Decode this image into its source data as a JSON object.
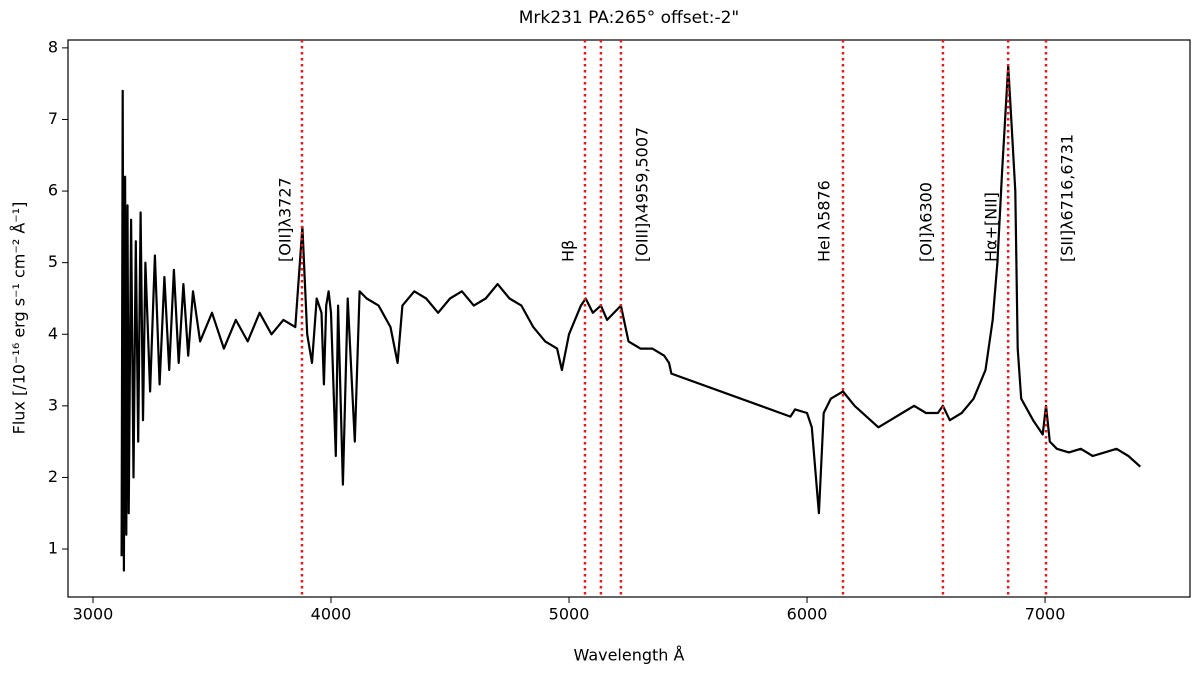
{
  "chart_data": {
    "type": "line",
    "title": "Mrk231 PA:265° offset:-2\"",
    "x_label": "Wavelength Å",
    "y_label": "Flux  [/10⁻¹⁶ erg s⁻¹ cm⁻² Å⁻¹]",
    "xlim": [
      2895,
      7609
    ],
    "ylim": [
      0.33,
      8.11
    ],
    "xticks": [
      3000,
      4000,
      5000,
      6000,
      7000
    ],
    "yticks": [
      1,
      2,
      3,
      4,
      5,
      6,
      7,
      8
    ],
    "grid": false,
    "series": [
      {
        "color": "#000000",
        "x": [
          3120,
          3125,
          3130,
          3135,
          3140,
          3145,
          3150,
          3160,
          3170,
          3180,
          3190,
          3200,
          3210,
          3220,
          3240,
          3260,
          3280,
          3300,
          3320,
          3340,
          3360,
          3380,
          3400,
          3420,
          3450,
          3500,
          3550,
          3600,
          3650,
          3700,
          3750,
          3800,
          3850,
          3880,
          3900,
          3920,
          3940,
          3960,
          3970,
          3980,
          3990,
          4000,
          4020,
          4030,
          4050,
          4070,
          4100,
          4120,
          4150,
          4200,
          4250,
          4280,
          4300,
          4350,
          4400,
          4450,
          4500,
          4550,
          4600,
          4650,
          4700,
          4750,
          4800,
          4850,
          4900,
          4950,
          4970,
          5000,
          5050,
          5070,
          5100,
          5134,
          5160,
          5218,
          5250,
          5300,
          5350,
          5400,
          5420,
          5430,
          5930,
          5950,
          6000,
          6020,
          6050,
          6070,
          6100,
          6151,
          6200,
          6250,
          6300,
          6350,
          6400,
          6450,
          6500,
          6550,
          6571,
          6600,
          6650,
          6700,
          6750,
          6780,
          6800,
          6820,
          6845,
          6860,
          6875,
          6885,
          6900,
          6950,
          6990,
          7004,
          7020,
          7050,
          7100,
          7150,
          7200,
          7250,
          7300,
          7350,
          7400
        ],
        "values": [
          0.9,
          7.4,
          0.7,
          6.2,
          1.2,
          5.8,
          1.5,
          5.6,
          2.0,
          5.3,
          2.5,
          5.7,
          2.8,
          5.0,
          3.2,
          5.1,
          3.3,
          4.8,
          3.5,
          4.9,
          3.6,
          4.7,
          3.7,
          4.6,
          3.9,
          4.3,
          3.8,
          4.2,
          3.9,
          4.3,
          4.0,
          4.2,
          4.1,
          5.5,
          4.0,
          3.6,
          4.5,
          4.3,
          3.3,
          4.4,
          4.6,
          4.3,
          2.3,
          4.4,
          1.9,
          4.5,
          2.5,
          4.6,
          4.5,
          4.4,
          4.1,
          3.6,
          4.4,
          4.6,
          4.5,
          4.3,
          4.5,
          4.6,
          4.4,
          4.5,
          4.7,
          4.5,
          4.4,
          4.1,
          3.9,
          3.8,
          3.5,
          4.0,
          4.4,
          4.5,
          4.3,
          4.4,
          4.2,
          4.4,
          3.9,
          3.8,
          3.8,
          3.7,
          3.6,
          3.45,
          2.85,
          2.95,
          2.9,
          2.7,
          1.5,
          2.9,
          3.1,
          3.2,
          3.0,
          2.85,
          2.7,
          2.8,
          2.9,
          3.0,
          2.9,
          2.9,
          3.0,
          2.8,
          2.9,
          3.1,
          3.5,
          4.2,
          5.0,
          6.3,
          7.75,
          6.9,
          6.0,
          3.8,
          3.1,
          2.8,
          2.6,
          3.0,
          2.5,
          2.4,
          2.35,
          2.4,
          2.3,
          2.35,
          2.4,
          2.3,
          2.15
        ]
      }
    ],
    "lines": [
      {
        "x": 3878,
        "label": "[OII]λ3727"
      },
      {
        "x": 5067,
        "label": "Hβ"
      },
      {
        "x": 5134
      },
      {
        "x": 5218,
        "label": "[OIII]λ4959,5007"
      },
      {
        "x": 6151,
        "label": "HeI λ5876"
      },
      {
        "x": 6571,
        "label": "[OI]λ6300"
      },
      {
        "x": 6845,
        "label": "Hα+[NII]"
      },
      {
        "x": 7004,
        "label": "[SII]λ6716,6731"
      }
    ],
    "line_color": "#e41a1c"
  }
}
